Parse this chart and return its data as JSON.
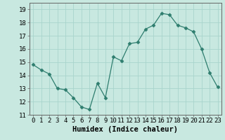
{
  "x": [
    0,
    1,
    2,
    3,
    4,
    5,
    6,
    7,
    8,
    9,
    10,
    11,
    12,
    13,
    14,
    15,
    16,
    17,
    18,
    19,
    20,
    21,
    22,
    23
  ],
  "y": [
    14.8,
    14.4,
    14.1,
    13.0,
    12.9,
    12.3,
    11.6,
    11.4,
    13.4,
    12.3,
    15.4,
    15.1,
    16.4,
    16.5,
    17.5,
    17.8,
    18.7,
    18.6,
    17.8,
    17.6,
    17.3,
    16.0,
    14.2,
    13.1
  ],
  "line_color": "#2e7d6e",
  "marker": "D",
  "markersize": 2.5,
  "bg_color": "#c8e8e0",
  "grid_color": "#a8d4cc",
  "xlabel": "Humidex (Indice chaleur)",
  "ylim": [
    11,
    19.5
  ],
  "xlim": [
    -0.5,
    23.5
  ],
  "yticks": [
    11,
    12,
    13,
    14,
    15,
    16,
    17,
    18,
    19
  ],
  "xticks": [
    0,
    1,
    2,
    3,
    4,
    5,
    6,
    7,
    8,
    9,
    10,
    11,
    12,
    13,
    14,
    15,
    16,
    17,
    18,
    19,
    20,
    21,
    22,
    23
  ],
  "tick_fontsize": 6.5,
  "label_fontsize": 7.5,
  "linewidth": 0.9
}
